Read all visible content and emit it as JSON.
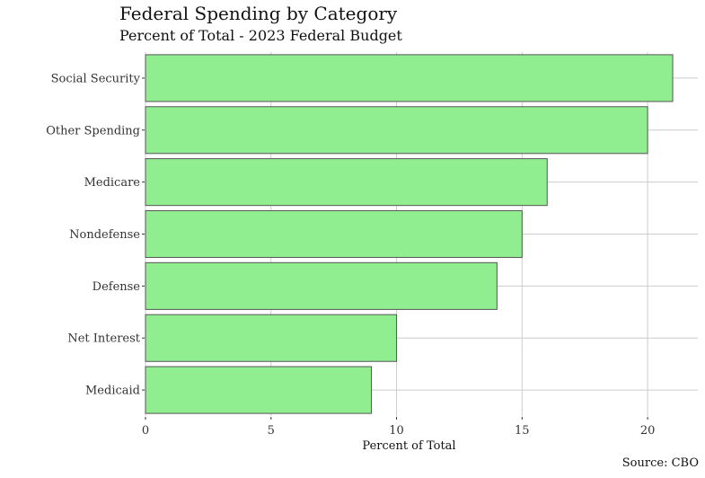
{
  "chart_data": {
    "type": "bar",
    "orientation": "horizontal",
    "title": "Federal Spending by Category",
    "subtitle": "Percent of Total - 2023 Federal Budget",
    "caption": "Source: CBO",
    "xlabel": "Percent of Total",
    "ylabel": "",
    "categories": [
      "Social Security",
      "Other Spending",
      "Medicare",
      "Nondefense",
      "Defense",
      "Net Interest",
      "Medicaid"
    ],
    "values": [
      21,
      20,
      16,
      15,
      14,
      10,
      9
    ],
    "xlim": [
      0,
      22
    ],
    "xticks": [
      0,
      5,
      10,
      15,
      20
    ],
    "grid": true,
    "legend": "none",
    "bar_color": "#90ee90",
    "bar_edge_color": "#555555",
    "grid_color": "#cccccc"
  }
}
